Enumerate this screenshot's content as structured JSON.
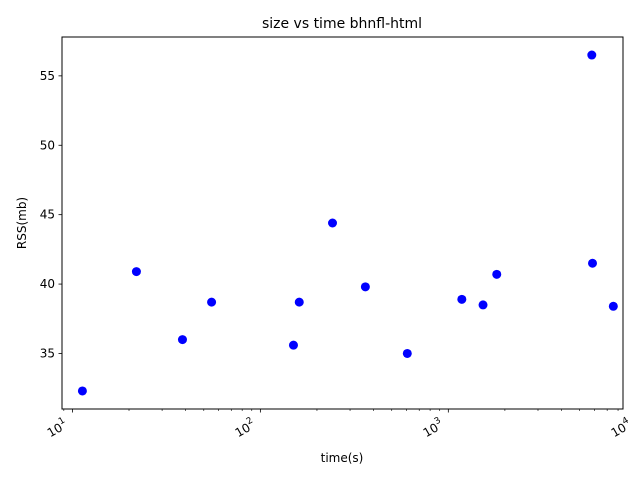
{
  "chart_data": {
    "type": "scatter",
    "title": "size vs time bhnfl-html",
    "xlabel": "time(s)",
    "ylabel": "RSS(mb)",
    "xscale": "log",
    "xlim": [
      8.8,
      8500
    ],
    "ylim": [
      31.0,
      57.8
    ],
    "xticks": [
      {
        "value": 10,
        "mantissa": "10",
        "exponent": "1"
      },
      {
        "value": 100,
        "mantissa": "10",
        "exponent": "2"
      },
      {
        "value": 1000,
        "mantissa": "10",
        "exponent": "3"
      },
      {
        "value": 10000,
        "mantissa": "10",
        "exponent": "4"
      }
    ],
    "yticks": [
      35,
      40,
      45,
      50,
      55
    ],
    "grid": false,
    "legend": "none",
    "marker_color": "#0000ff",
    "series": [
      {
        "points": [
          {
            "x": 11.3,
            "y": 32.3
          },
          {
            "x": 21.9,
            "y": 40.9
          },
          {
            "x": 38.5,
            "y": 36.0
          },
          {
            "x": 55.0,
            "y": 38.7
          },
          {
            "x": 150,
            "y": 35.6
          },
          {
            "x": 161,
            "y": 38.7
          },
          {
            "x": 242,
            "y": 44.4
          },
          {
            "x": 362,
            "y": 39.8
          },
          {
            "x": 605,
            "y": 35.0
          },
          {
            "x": 1180,
            "y": 38.9
          },
          {
            "x": 1530,
            "y": 38.5
          },
          {
            "x": 1810,
            "y": 40.7
          },
          {
            "x": 5800,
            "y": 56.5
          },
          {
            "x": 5850,
            "y": 41.5
          },
          {
            "x": 7550,
            "y": 38.4
          }
        ]
      }
    ]
  }
}
